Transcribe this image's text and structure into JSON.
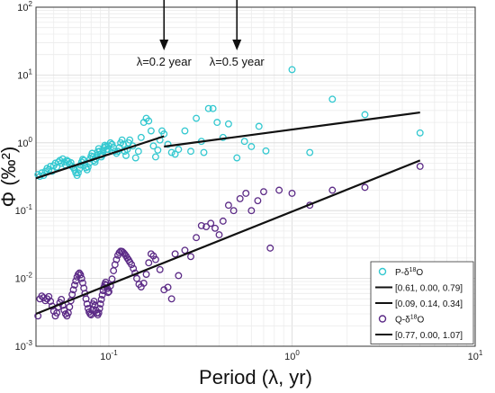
{
  "chart_data": {
    "type": "scatter",
    "xscale": "log",
    "yscale": "log",
    "xlim": [
      0.04,
      10
    ],
    "ylim": [
      0.001,
      100
    ],
    "xlabel": "Period (λ, yr)",
    "ylabel": "Φ (‰²)",
    "xticks": [
      {
        "v": 0.1,
        "base": "10",
        "exp": "-1"
      },
      {
        "v": 1,
        "base": "10",
        "exp": "0"
      },
      {
        "v": 10,
        "base": "10",
        "exp": "1"
      }
    ],
    "yticks": [
      {
        "v": 0.001,
        "base": "10",
        "exp": "-3"
      },
      {
        "v": 0.01,
        "base": "10",
        "exp": "-2"
      },
      {
        "v": 0.1,
        "base": "10",
        "exp": "-1"
      },
      {
        "v": 1,
        "base": "10",
        "exp": "0"
      },
      {
        "v": 10,
        "base": "10",
        "exp": "1"
      },
      {
        "v": 100,
        "base": "10",
        "exp": "2"
      }
    ],
    "grid": true,
    "legend_position": "bottom-right",
    "annotations": [
      {
        "text": "λ=0.2 year",
        "x": 0.2
      },
      {
        "text": "λ=0.5 year",
        "x": 0.5
      }
    ],
    "series": [
      {
        "name": "P-δ18O",
        "name_base": "P-δ",
        "name_sup": "18",
        "name_tail": "O",
        "kind": "points",
        "color": "#33c8d0",
        "points": [
          [
            0.041,
            0.34
          ],
          [
            0.042,
            0.32
          ],
          [
            0.043,
            0.36
          ],
          [
            0.044,
            0.33
          ],
          [
            0.045,
            0.38
          ],
          [
            0.046,
            0.42
          ],
          [
            0.047,
            0.4
          ],
          [
            0.048,
            0.45
          ],
          [
            0.049,
            0.38
          ],
          [
            0.05,
            0.46
          ],
          [
            0.051,
            0.5
          ],
          [
            0.052,
            0.44
          ],
          [
            0.053,
            0.52
          ],
          [
            0.054,
            0.55
          ],
          [
            0.055,
            0.5
          ],
          [
            0.056,
            0.58
          ],
          [
            0.057,
            0.52
          ],
          [
            0.058,
            0.47
          ],
          [
            0.059,
            0.55
          ],
          [
            0.06,
            0.53
          ],
          [
            0.061,
            0.48
          ],
          [
            0.062,
            0.51
          ],
          [
            0.063,
            0.45
          ],
          [
            0.064,
            0.43
          ],
          [
            0.065,
            0.4
          ],
          [
            0.066,
            0.36
          ],
          [
            0.067,
            0.33
          ],
          [
            0.068,
            0.36
          ],
          [
            0.069,
            0.41
          ],
          [
            0.07,
            0.47
          ],
          [
            0.071,
            0.52
          ],
          [
            0.072,
            0.57
          ],
          [
            0.073,
            0.55
          ],
          [
            0.074,
            0.48
          ],
          [
            0.075,
            0.43
          ],
          [
            0.076,
            0.4
          ],
          [
            0.077,
            0.44
          ],
          [
            0.078,
            0.5
          ],
          [
            0.079,
            0.58
          ],
          [
            0.08,
            0.64
          ],
          [
            0.081,
            0.7
          ],
          [
            0.082,
            0.62
          ],
          [
            0.083,
            0.55
          ],
          [
            0.084,
            0.52
          ],
          [
            0.085,
            0.58
          ],
          [
            0.086,
            0.66
          ],
          [
            0.087,
            0.74
          ],
          [
            0.088,
            0.82
          ],
          [
            0.089,
            0.75
          ],
          [
            0.09,
            0.68
          ],
          [
            0.091,
            0.62
          ],
          [
            0.092,
            0.66
          ],
          [
            0.093,
            0.75
          ],
          [
            0.094,
            0.85
          ],
          [
            0.095,
            0.92
          ],
          [
            0.096,
            0.88
          ],
          [
            0.097,
            0.8
          ],
          [
            0.098,
            0.74
          ],
          [
            0.099,
            0.8
          ],
          [
            0.1,
            0.9
          ],
          [
            0.102,
            1.0
          ],
          [
            0.104,
            0.95
          ],
          [
            0.106,
            0.85
          ],
          [
            0.108,
            0.75
          ],
          [
            0.11,
            0.7
          ],
          [
            0.112,
            0.75
          ],
          [
            0.114,
            0.85
          ],
          [
            0.116,
            1.0
          ],
          [
            0.118,
            1.1
          ],
          [
            0.12,
            0.95
          ],
          [
            0.122,
            0.75
          ],
          [
            0.124,
            0.65
          ],
          [
            0.126,
            0.8
          ],
          [
            0.128,
            1.0
          ],
          [
            0.13,
            1.1
          ],
          [
            0.135,
            0.9
          ],
          [
            0.14,
            0.6
          ],
          [
            0.145,
            0.75
          ],
          [
            0.15,
            1.2
          ],
          [
            0.155,
            2.0
          ],
          [
            0.16,
            2.3
          ],
          [
            0.165,
            2.1
          ],
          [
            0.17,
            1.5
          ],
          [
            0.175,
            0.9
          ],
          [
            0.18,
            0.62
          ],
          [
            0.185,
            0.78
          ],
          [
            0.19,
            1.1
          ],
          [
            0.195,
            1.5
          ],
          [
            0.2,
            1.35
          ],
          [
            0.21,
            0.95
          ],
          [
            0.22,
            0.72
          ],
          [
            0.23,
            0.68
          ],
          [
            0.24,
            0.8
          ],
          [
            0.26,
            1.5
          ],
          [
            0.28,
            0.75
          ],
          [
            0.3,
            2.3
          ],
          [
            0.32,
            1.05
          ],
          [
            0.33,
            0.72
          ],
          [
            0.35,
            3.2
          ],
          [
            0.37,
            3.2
          ],
          [
            0.39,
            2.0
          ],
          [
            0.42,
            1.2
          ],
          [
            0.45,
            1.9
          ],
          [
            0.5,
            0.6
          ],
          [
            0.55,
            1.05
          ],
          [
            0.6,
            0.88
          ],
          [
            0.66,
            1.75
          ],
          [
            0.72,
            0.76
          ],
          [
            1.0,
            12.0
          ],
          [
            1.25,
            0.72
          ],
          [
            1.66,
            4.4
          ],
          [
            2.5,
            2.6
          ],
          [
            5.0,
            1.4
          ]
        ]
      },
      {
        "name": "[0.61, 0.00, 0.79]",
        "kind": "line",
        "color": "#111111",
        "x": [
          0.04,
          0.2
        ],
        "y": [
          0.3,
          1.25
        ]
      },
      {
        "name": "[0.09, 0.14, 0.34]",
        "kind": "line",
        "color": "#111111",
        "x": [
          0.2,
          5.0
        ],
        "y": [
          0.88,
          2.8
        ]
      },
      {
        "name": "Q-δ18O",
        "name_base": "Q-δ",
        "name_sup": "18",
        "name_tail": "O",
        "kind": "points",
        "color": "#5b2a86",
        "points": [
          [
            0.041,
            0.0028
          ],
          [
            0.042,
            0.005
          ],
          [
            0.043,
            0.0055
          ],
          [
            0.044,
            0.0052
          ],
          [
            0.045,
            0.0047
          ],
          [
            0.046,
            0.005
          ],
          [
            0.047,
            0.0054
          ],
          [
            0.048,
            0.0046
          ],
          [
            0.049,
            0.0039
          ],
          [
            0.05,
            0.0033
          ],
          [
            0.051,
            0.0028
          ],
          [
            0.052,
            0.0031
          ],
          [
            0.053,
            0.0038
          ],
          [
            0.054,
            0.0044
          ],
          [
            0.055,
            0.0049
          ],
          [
            0.056,
            0.004
          ],
          [
            0.057,
            0.0034
          ],
          [
            0.058,
            0.003
          ],
          [
            0.059,
            0.0028
          ],
          [
            0.06,
            0.0031
          ],
          [
            0.061,
            0.0038
          ],
          [
            0.062,
            0.0047
          ],
          [
            0.063,
            0.0058
          ],
          [
            0.064,
            0.0068
          ],
          [
            0.065,
            0.008
          ],
          [
            0.066,
            0.0092
          ],
          [
            0.067,
            0.0105
          ],
          [
            0.068,
            0.0115
          ],
          [
            0.069,
            0.012
          ],
          [
            0.07,
            0.0113
          ],
          [
            0.071,
            0.01
          ],
          [
            0.072,
            0.0086
          ],
          [
            0.073,
            0.0072
          ],
          [
            0.074,
            0.006
          ],
          [
            0.075,
            0.005
          ],
          [
            0.076,
            0.0042
          ],
          [
            0.077,
            0.0036
          ],
          [
            0.078,
            0.0032
          ],
          [
            0.079,
            0.003
          ],
          [
            0.08,
            0.0029
          ],
          [
            0.081,
            0.0034
          ],
          [
            0.082,
            0.0042
          ],
          [
            0.083,
            0.0046
          ],
          [
            0.084,
            0.004
          ],
          [
            0.085,
            0.0034
          ],
          [
            0.086,
            0.0031
          ],
          [
            0.087,
            0.0029
          ],
          [
            0.088,
            0.0031
          ],
          [
            0.089,
            0.0036
          ],
          [
            0.09,
            0.0042
          ],
          [
            0.091,
            0.0049
          ],
          [
            0.092,
            0.0057
          ],
          [
            0.093,
            0.0066
          ],
          [
            0.094,
            0.0074
          ],
          [
            0.095,
            0.0082
          ],
          [
            0.096,
            0.0088
          ],
          [
            0.097,
            0.008
          ],
          [
            0.098,
            0.0071
          ],
          [
            0.099,
            0.0062
          ],
          [
            0.1,
            0.0064
          ],
          [
            0.102,
            0.0078
          ],
          [
            0.104,
            0.0098
          ],
          [
            0.106,
            0.013
          ],
          [
            0.108,
            0.016
          ],
          [
            0.11,
            0.019
          ],
          [
            0.112,
            0.022
          ],
          [
            0.114,
            0.024
          ],
          [
            0.116,
            0.0252
          ],
          [
            0.118,
            0.025
          ],
          [
            0.12,
            0.024
          ],
          [
            0.122,
            0.0228
          ],
          [
            0.124,
            0.0215
          ],
          [
            0.126,
            0.02
          ],
          [
            0.128,
            0.0188
          ],
          [
            0.13,
            0.0175
          ],
          [
            0.133,
            0.016
          ],
          [
            0.136,
            0.014
          ],
          [
            0.139,
            0.012
          ],
          [
            0.142,
            0.01
          ],
          [
            0.146,
            0.0082
          ],
          [
            0.15,
            0.0075
          ],
          [
            0.155,
            0.0085
          ],
          [
            0.16,
            0.0115
          ],
          [
            0.165,
            0.017
          ],
          [
            0.17,
            0.023
          ],
          [
            0.175,
            0.0215
          ],
          [
            0.18,
            0.019
          ],
          [
            0.19,
            0.0135
          ],
          [
            0.2,
            0.0068
          ],
          [
            0.21,
            0.0074
          ],
          [
            0.22,
            0.005
          ],
          [
            0.23,
            0.023
          ],
          [
            0.24,
            0.011
          ],
          [
            0.26,
            0.026
          ],
          [
            0.28,
            0.021
          ],
          [
            0.3,
            0.04
          ],
          [
            0.32,
            0.06
          ],
          [
            0.34,
            0.058
          ],
          [
            0.36,
            0.065
          ],
          [
            0.38,
            0.055
          ],
          [
            0.4,
            0.044
          ],
          [
            0.42,
            0.07
          ],
          [
            0.45,
            0.12
          ],
          [
            0.48,
            0.1
          ],
          [
            0.52,
            0.15
          ],
          [
            0.56,
            0.18
          ],
          [
            0.6,
            0.1
          ],
          [
            0.65,
            0.14
          ],
          [
            0.7,
            0.19
          ],
          [
            0.76,
            0.028
          ],
          [
            0.85,
            0.2
          ],
          [
            1.0,
            0.18
          ],
          [
            1.25,
            0.12
          ],
          [
            1.66,
            0.2
          ],
          [
            2.5,
            0.22
          ],
          [
            5.0,
            0.45
          ]
        ]
      },
      {
        "name": "[0.77, 0.00, 1.07]",
        "kind": "line",
        "color": "#111111",
        "x": [
          0.04,
          5.0
        ],
        "y": [
          0.003,
          0.55
        ]
      }
    ]
  }
}
